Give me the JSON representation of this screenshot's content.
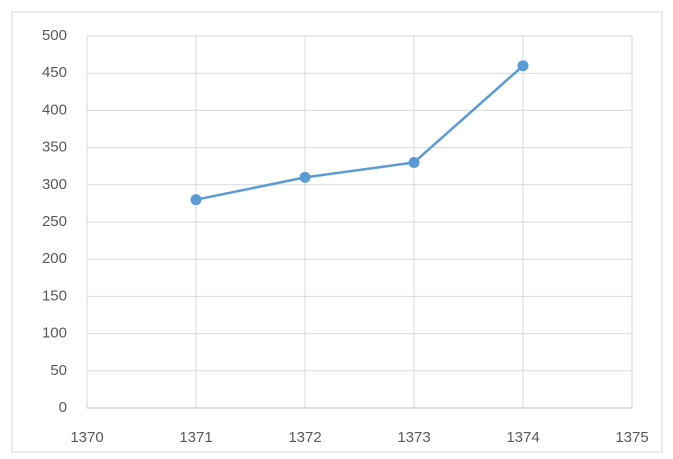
{
  "chart_data": {
    "type": "line",
    "x": [
      1371,
      1372,
      1373,
      1374
    ],
    "values": [
      280,
      310,
      330,
      460
    ],
    "color": "#5b9bd5",
    "xlim": [
      1370,
      1375
    ],
    "xticks": [
      1370,
      1371,
      1372,
      1373,
      1374,
      1375
    ],
    "ylim": [
      0,
      500
    ],
    "yticks": [
      0,
      50,
      100,
      150,
      200,
      250,
      300,
      350,
      400,
      450,
      500
    ],
    "grid": true
  }
}
